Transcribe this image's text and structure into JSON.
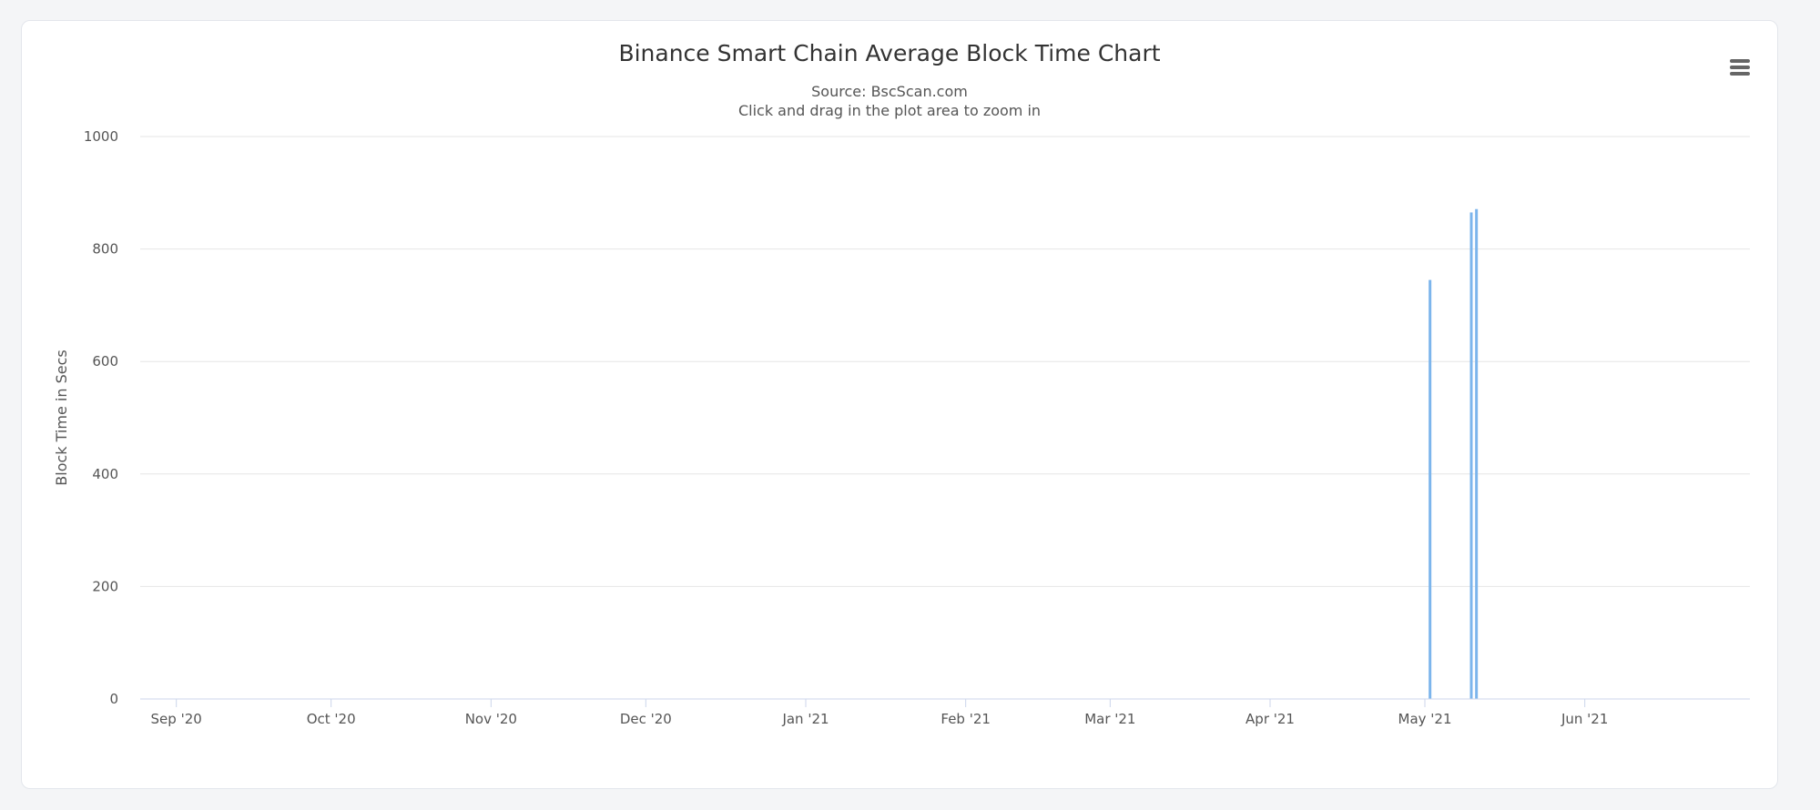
{
  "chart_data": {
    "type": "bar",
    "title": "Binance Smart Chain Average Block Time Chart",
    "subtitle_lines": [
      "Source: BscScan.com",
      "Click and drag in the plot area to zoom in"
    ],
    "ylabel": "Block Time in Secs",
    "xlabel": "",
    "x_axis_type": "date",
    "xlim": [
      "2020-08-25",
      "2021-07-03"
    ],
    "ylim": [
      0,
      1000
    ],
    "y_ticks": [
      0,
      200,
      400,
      600,
      800,
      1000
    ],
    "x_ticks": [
      {
        "date": "2020-09-01",
        "label": "Sep '20"
      },
      {
        "date": "2020-10-01",
        "label": "Oct '20"
      },
      {
        "date": "2020-11-01",
        "label": "Nov '20"
      },
      {
        "date": "2020-12-01",
        "label": "Dec '20"
      },
      {
        "date": "2021-01-01",
        "label": "Jan '21"
      },
      {
        "date": "2021-02-01",
        "label": "Feb '21"
      },
      {
        "date": "2021-03-01",
        "label": "Mar '21"
      },
      {
        "date": "2021-04-01",
        "label": "Apr '21"
      },
      {
        "date": "2021-05-01",
        "label": "May '21"
      },
      {
        "date": "2021-06-01",
        "label": "Jun '21"
      }
    ],
    "grid": true,
    "legend": "none",
    "series": [
      {
        "color": "#7cb5ec",
        "points": [
          {
            "x": "2021-05-02",
            "y": 745
          },
          {
            "x": "2021-05-10",
            "y": 865
          },
          {
            "x": "2021-05-11",
            "y": 871
          }
        ]
      }
    ]
  },
  "toolbar": {
    "menu_icon": "hamburger-menu-icon"
  }
}
